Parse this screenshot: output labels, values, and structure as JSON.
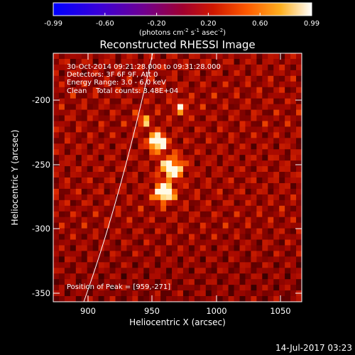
{
  "colorbar": {
    "ticks": [
      "-0.99",
      "-0.60",
      "-0.20",
      "0.20",
      "0.60",
      "0.99"
    ],
    "units_prefix": "(photons cm",
    "units_exp1": "-2",
    "units_mid": " s",
    "units_exp2": "-1",
    "units_mid2": " asec",
    "units_exp3": "-2",
    "units_suffix": ")",
    "colormap": "rhessi-std-gamma-ii",
    "range": [
      -0.99,
      0.99
    ]
  },
  "title": "Reconstructed RHESSI Image",
  "info": {
    "line1": "30-Oct-2014 09:21:28.000 to 09:31:28.000",
    "line2": "Detectors: 3F 6F 9F, Att 0",
    "line3": "Energy Range: 3.0 - 6.0 keV",
    "line4": "Clean    Total counts: 3.48E+04"
  },
  "peak_label": "Position of Peak = [959,-271]",
  "xaxis": {
    "title": "Heliocentric X (arcsec)",
    "ticks": [
      "900",
      "950",
      "1000",
      "1050"
    ],
    "range": [
      873,
      1066
    ]
  },
  "yaxis": {
    "title": "Heliocentric Y (arcsec)",
    "ticks": [
      "-200",
      "-250",
      "-300",
      "-350"
    ],
    "range": [
      -356,
      -163
    ]
  },
  "image": {
    "peak": [
      959,
      -271
    ],
    "secondary_sources": [
      [
        954,
        -232
      ],
      [
        965,
        -252
      ],
      [
        972,
        -205
      ],
      [
        943,
        -215
      ]
    ]
  },
  "timestamp": "14-Jul-2017 03:23"
}
